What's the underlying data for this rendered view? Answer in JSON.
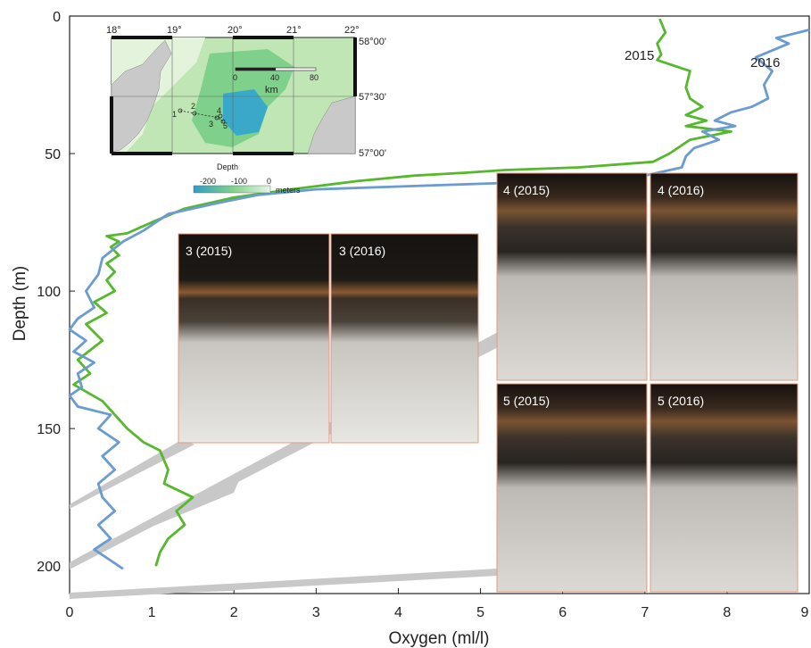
{
  "chart_data": {
    "type": "line",
    "xlabel": "Oxygen (ml/l)",
    "ylabel": "Depth (m)",
    "xlim": [
      0,
      9
    ],
    "ylim": [
      0,
      210
    ],
    "y_inverted": true,
    "x_ticks": [
      "0",
      "1",
      "2",
      "3",
      "4",
      "5",
      "6",
      "7",
      "8",
      "9"
    ],
    "y_ticks": [
      "0",
      "50",
      "100",
      "150",
      "200"
    ],
    "series": [
      {
        "name": "2015",
        "color": "#56b82c",
        "points": [
          [
            7.18,
            1
          ],
          [
            7.25,
            6
          ],
          [
            7.15,
            10
          ],
          [
            7.2,
            14
          ],
          [
            7.15,
            16
          ],
          [
            7.55,
            20
          ],
          [
            7.5,
            26
          ],
          [
            7.55,
            30
          ],
          [
            7.7,
            33
          ],
          [
            7.5,
            36
          ],
          [
            7.75,
            38
          ],
          [
            7.5,
            40
          ],
          [
            8.05,
            42
          ],
          [
            7.55,
            45
          ],
          [
            7.3,
            50
          ],
          [
            7.1,
            53
          ],
          [
            6.2,
            55
          ],
          [
            5.3,
            56
          ],
          [
            4.8,
            57
          ],
          [
            4.2,
            58
          ],
          [
            3.5,
            60
          ],
          [
            2.7,
            63
          ],
          [
            2.0,
            66
          ],
          [
            1.4,
            70
          ],
          [
            1.0,
            75
          ],
          [
            0.7,
            79
          ],
          [
            0.45,
            80
          ],
          [
            0.6,
            82
          ],
          [
            0.5,
            84
          ],
          [
            0.6,
            87
          ],
          [
            0.45,
            90
          ],
          [
            0.55,
            93
          ],
          [
            0.45,
            96
          ],
          [
            0.55,
            100
          ],
          [
            0.3,
            104
          ],
          [
            0.45,
            108
          ],
          [
            0.2,
            112
          ],
          [
            0.4,
            118
          ],
          [
            0.1,
            125
          ],
          [
            0.25,
            130
          ],
          [
            0.05,
            134
          ],
          [
            0.4,
            140
          ],
          [
            0.55,
            145
          ],
          [
            0.7,
            150
          ],
          [
            0.9,
            155
          ],
          [
            1.1,
            158
          ],
          [
            1.2,
            165
          ],
          [
            1.15,
            170
          ],
          [
            1.5,
            175
          ],
          [
            1.3,
            180
          ],
          [
            1.4,
            185
          ],
          [
            1.2,
            190
          ],
          [
            1.1,
            195
          ],
          [
            1.05,
            200
          ]
        ]
      },
      {
        "name": "2016",
        "color": "#6a9bd1",
        "points": [
          [
            9.0,
            5
          ],
          [
            8.6,
            8
          ],
          [
            8.75,
            10
          ],
          [
            8.35,
            15
          ],
          [
            8.55,
            20
          ],
          [
            8.45,
            25
          ],
          [
            8.5,
            30
          ],
          [
            8.3,
            33
          ],
          [
            8.05,
            35
          ],
          [
            7.85,
            38
          ],
          [
            8.1,
            40
          ],
          [
            7.7,
            42
          ],
          [
            7.9,
            45
          ],
          [
            7.6,
            48
          ],
          [
            7.5,
            51
          ],
          [
            7.45,
            55
          ],
          [
            7.0,
            58
          ],
          [
            6.0,
            60
          ],
          [
            5.0,
            61
          ],
          [
            4.0,
            62
          ],
          [
            3.0,
            63
          ],
          [
            2.3,
            65
          ],
          [
            1.8,
            68
          ],
          [
            1.2,
            72
          ],
          [
            0.9,
            78
          ],
          [
            0.65,
            82
          ],
          [
            0.4,
            88
          ],
          [
            0.35,
            94
          ],
          [
            0.2,
            100
          ],
          [
            0.3,
            106
          ],
          [
            0.1,
            110
          ],
          [
            0.0,
            114
          ],
          [
            0.2,
            118
          ],
          [
            0.05,
            122
          ],
          [
            0.3,
            126
          ],
          [
            0.1,
            130
          ],
          [
            0.15,
            135
          ],
          [
            0.0,
            138
          ],
          [
            0.1,
            142
          ],
          [
            0.5,
            145
          ],
          [
            0.35,
            150
          ],
          [
            0.6,
            155
          ],
          [
            0.4,
            160
          ],
          [
            0.55,
            165
          ],
          [
            0.35,
            170
          ],
          [
            0.4,
            175
          ],
          [
            0.55,
            180
          ],
          [
            0.35,
            185
          ],
          [
            0.5,
            190
          ],
          [
            0.3,
            194
          ],
          [
            0.5,
            198
          ],
          [
            0.65,
            201
          ]
        ]
      }
    ],
    "series_labels": [
      "2015",
      "2016"
    ],
    "core_photos": [
      {
        "label": "3 (2015)"
      },
      {
        "label": "3 (2016)"
      },
      {
        "label": "4 (2015)"
      },
      {
        "label": "4 (2016)"
      },
      {
        "label": "5 (2015)"
      },
      {
        "label": "5 (2016)"
      }
    ],
    "inset_map": {
      "lon_labels": [
        "18°",
        "19°",
        "20°",
        "21°",
        "22°"
      ],
      "lat_labels": [
        "58°00'",
        "57°30'",
        "57°00'"
      ],
      "scale_labels": [
        "0",
        "40",
        "80"
      ],
      "scale_unit": "km",
      "station_labels": [
        "1",
        "2",
        "3",
        "4",
        "5"
      ],
      "legend_title": "Depth",
      "legend_ticks": [
        "-200",
        "-100",
        "0"
      ],
      "legend_unit": "meters"
    }
  }
}
